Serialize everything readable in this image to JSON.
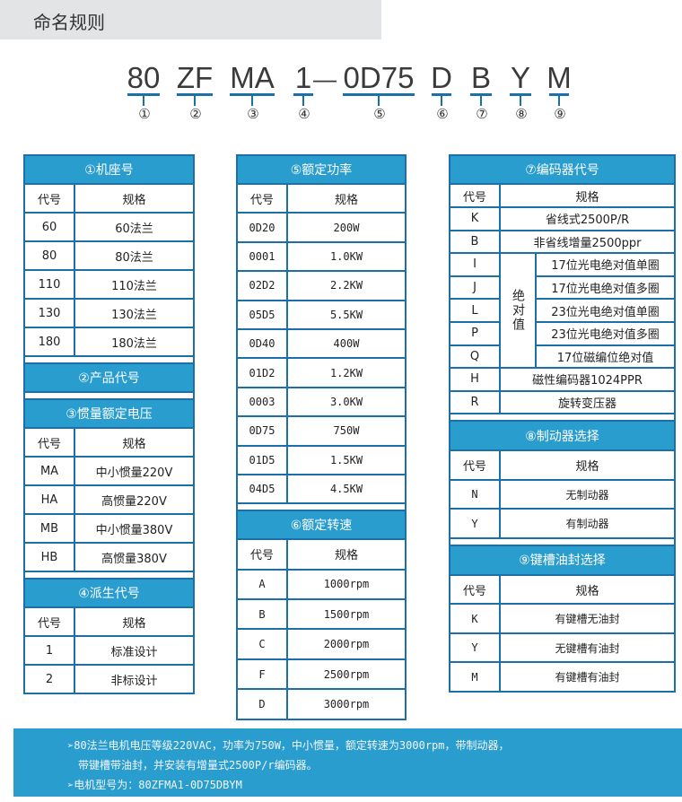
{
  "title": "命名规则",
  "model_parts": [
    {
      "text": "80",
      "num": "①"
    },
    {
      "text": "ZF",
      "num": "②"
    },
    {
      "text": "MA",
      "num": "③"
    },
    {
      "text": "1",
      "num": "④"
    },
    {
      "text": "0D75",
      "num": "⑤"
    },
    {
      "text": "D",
      "num": "⑥"
    },
    {
      "text": "B",
      "num": "⑦"
    },
    {
      "text": "Y",
      "num": "⑧"
    },
    {
      "text": "M",
      "num": "⑨"
    }
  ],
  "model_dash": "—",
  "col_headers": {
    "code": "代号",
    "spec": "规格"
  },
  "tables": {
    "frame": {
      "title": "①机座号",
      "rows": [
        [
          "60",
          "60法兰"
        ],
        [
          "80",
          "80法兰"
        ],
        [
          "110",
          "110法兰"
        ],
        [
          "130",
          "130法兰"
        ],
        [
          "180",
          "180法兰"
        ]
      ]
    },
    "product": {
      "title": "②产品代号"
    },
    "inertia": {
      "title": "③惯量额定电压",
      "rows": [
        [
          "MA",
          "中小惯量220V"
        ],
        [
          "HA",
          "高惯量220V"
        ],
        [
          "MB",
          "中小惯量380V"
        ],
        [
          "HB",
          "高惯量380V"
        ]
      ]
    },
    "derived": {
      "title": "④派生代号",
      "rows": [
        [
          "1",
          "标准设计"
        ],
        [
          "2",
          "非标设计"
        ]
      ]
    },
    "power": {
      "title": "⑤额定功率",
      "rows": [
        [
          "0D20",
          "200W"
        ],
        [
          "0001",
          "1.0KW"
        ],
        [
          "02D2",
          "2.2KW"
        ],
        [
          "05D5",
          "5.5KW"
        ],
        [
          "0D40",
          "400W"
        ],
        [
          "01D2",
          "1.2KW"
        ],
        [
          "0003",
          "3.0KW"
        ],
        [
          "0D75",
          "750W"
        ],
        [
          "01D5",
          "1.5KW"
        ],
        [
          "04D5",
          "4.5KW"
        ]
      ]
    },
    "speed": {
      "title": "⑥额定转速",
      "rows": [
        [
          "A",
          "1000rpm"
        ],
        [
          "B",
          "1500rpm"
        ],
        [
          "C",
          "2000rpm"
        ],
        [
          "F",
          "2500rpm"
        ],
        [
          "D",
          "3000rpm"
        ]
      ]
    },
    "encoder": {
      "title": "⑦编码器代号",
      "rows_top": [
        [
          "K",
          "省线式2500P/R"
        ],
        [
          "B",
          "非省线增量2500ppr"
        ]
      ],
      "abs_label": "绝对值",
      "rows_abs": [
        [
          "I",
          "17位光电绝对值单圈"
        ],
        [
          "J",
          "17位光电绝对值多圈"
        ],
        [
          "L",
          "23位光电绝对值单圈"
        ],
        [
          "P",
          "23位光电绝对值多圈"
        ],
        [
          "Q",
          "17位磁编位绝对值"
        ]
      ],
      "rows_bottom": [
        [
          "H",
          "磁性编码器1024PPR"
        ],
        [
          "R",
          "旋转变压器"
        ]
      ]
    },
    "brake": {
      "title": "⑧制动器选择",
      "rows": [
        [
          "N",
          "无制动器"
        ],
        [
          "Y",
          "有制动器"
        ]
      ]
    },
    "keyway": {
      "title": "⑨键槽油封选择",
      "rows": [
        [
          "K",
          "有键槽无油封"
        ],
        [
          "Y",
          "无键槽有油封"
        ],
        [
          "M",
          "有键槽有油封"
        ]
      ]
    }
  },
  "banner": {
    "line1": "➢80法兰电机电压等级220VAC，功率为750W，中小惯量，额定转速为3000rpm，带制动器，",
    "line2": "带键槽带油封，并安装有增量式2500P/r编码器。",
    "line3": "➢电机型号为：80ZFMA1-0D75DBYM"
  },
  "colors": {
    "header_blue": "#2a9dcf",
    "border_blue": "#1d6fa8",
    "title_bg": "#e3e4e5"
  }
}
